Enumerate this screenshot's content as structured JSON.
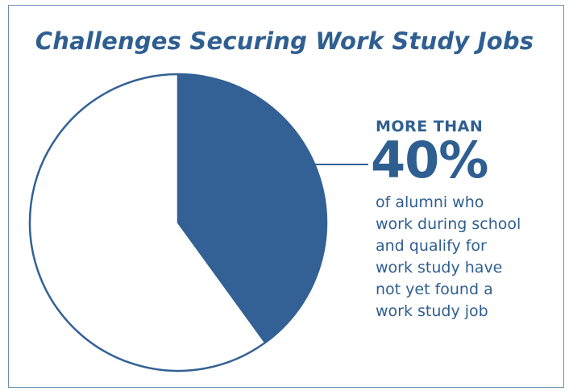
{
  "chart_data": {
    "type": "pie",
    "title": "Challenges Securing Work Study Jobs",
    "slices": [
      {
        "value": 40,
        "color": "#336195"
      },
      {
        "value": 60,
        "color": "#ffffff"
      }
    ]
  },
  "callout": {
    "prefix": "MORE THAN",
    "value": "40%",
    "description_lines": [
      "of alumni who",
      "work during school",
      "and qualify for",
      "work study have",
      "not yet found a",
      "work study job"
    ]
  },
  "colors": {
    "accent": "#2f5f91",
    "slice_fill": "#336195",
    "border": "#6e8fb5"
  }
}
